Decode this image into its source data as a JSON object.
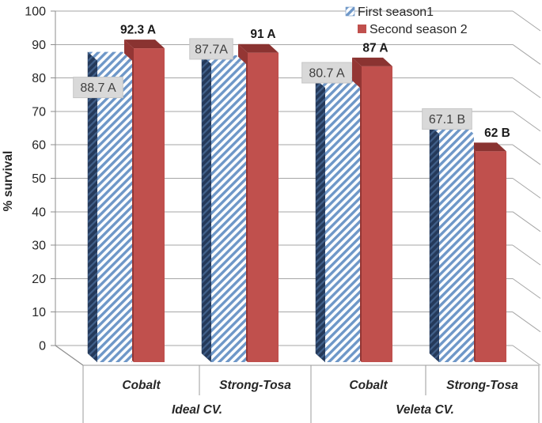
{
  "chart_data": {
    "type": "bar",
    "style": "3d-clustered-column",
    "title": "",
    "xlabel": "",
    "ylabel": "% survival",
    "ylim": [
      0,
      100
    ],
    "ytick_step": 10,
    "ytick_labels": [
      "0",
      "10",
      "20",
      "30",
      "40",
      "50",
      "60",
      "70",
      "80",
      "90",
      "100"
    ],
    "grid": true,
    "legend_position": "top-right",
    "groups": [
      {
        "label": "Ideal CV.",
        "categories": [
          "Cobalt",
          "Strong-Tosa"
        ]
      },
      {
        "label": "Veleta CV.",
        "categories": [
          "Cobalt",
          "Strong-Tosa"
        ]
      }
    ],
    "series": [
      {
        "name": "First season1",
        "swatch": "hatched-blue",
        "values": [
          88.7,
          87.7,
          80.7,
          67.1
        ],
        "point_labels": [
          "88.7 A",
          "87.7A",
          "80.7 A",
          "67.1 B"
        ],
        "label_style": "gray-box",
        "label_below_flags": [
          true,
          false,
          false,
          false
        ],
        "label_dx": [
          1,
          0,
          2,
          10
        ]
      },
      {
        "name": "Second season 2",
        "swatch": "solid-red",
        "values": [
          92.3,
          91,
          87,
          62
        ],
        "point_labels": [
          "92.3 A",
          "91 A",
          "87 A",
          "62 B"
        ],
        "label_style": "bold",
        "label_dx": [
          -14,
          0,
          -2,
          8
        ]
      }
    ],
    "colors": {
      "blue_stripe": "#6E97C8",
      "blue_bg": "#FFFFFF",
      "blue_side_base": "#24395A",
      "blue_side_stripe": "#41608A",
      "red_front": "#C0504D",
      "red_top": "#8A3331",
      "red_side": "#943634",
      "gridline": "#A6A6A6",
      "axis_line": "#8C8C8C",
      "table_line": "#9B9B9B",
      "label_box_bg": "#D9D9D9",
      "label_box_border": "#C6C6C6",
      "label_box_text": "#404040",
      "bold_label_text": "#1A1A1A",
      "tick_text": "#262626",
      "legend_text": "#262626",
      "table_text": "#262626"
    }
  }
}
